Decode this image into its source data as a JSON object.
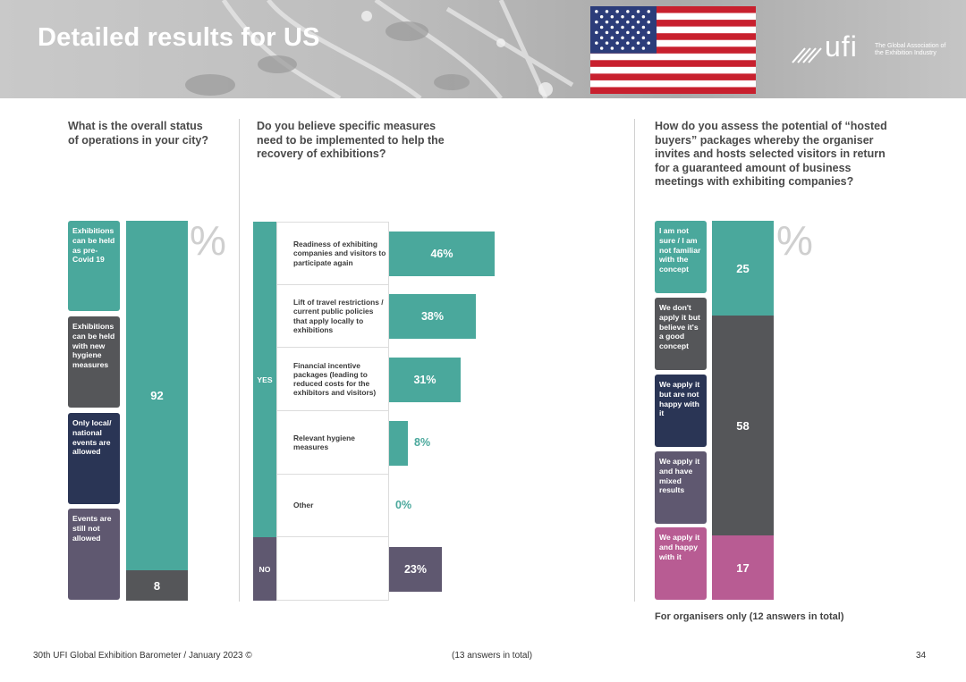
{
  "header": {
    "title": "Detailed results for US",
    "logo_text": "ufi",
    "logo_tagline": "The Global Association of the Exhibition Industry",
    "colors": {
      "teal": "#4aa89c",
      "dark_gray": "#555659",
      "navy": "#2a3555",
      "purple_gray": "#5f5870",
      "pink": "#b85c93"
    }
  },
  "chart_data": [
    {
      "type": "bar",
      "subtype": "stacked-100",
      "title": "What is the overall status of operations in your city?",
      "unit": "%",
      "legend": [
        "Exhibitions can be held as pre-Covid 19",
        "Exhibitions can be held with new hygiene measures",
        "Only local/ national events are allowed",
        "Events are still not allowed"
      ],
      "segments": [
        {
          "name": "Exhibitions can be held as pre-Covid 19",
          "value": 92,
          "label": "92"
        },
        {
          "name": "Exhibitions can be held with new hygiene measures",
          "value": 8,
          "label": "8"
        }
      ]
    },
    {
      "type": "bar",
      "subtype": "horizontal",
      "title": "Do you believe specific measures need to be implemented to help the recovery of exhibitions?",
      "groups": {
        "yes_label": "YES",
        "no_label": "NO"
      },
      "categories": [
        "Readiness of exhibiting companies and visitors to participate again",
        "Lift of travel restrictions / current public policies that apply locally to exhibitions",
        "Financial incentive packages (leading to reduced costs for the exhibitors and visitors)",
        "Relevant hygiene measures",
        "Other",
        ""
      ],
      "values": [
        46,
        38,
        31,
        8,
        0,
        23
      ],
      "labels": [
        "46%",
        "38%",
        "31%",
        "8%",
        "0%",
        "23%"
      ],
      "xlim": [
        0,
        100
      ]
    },
    {
      "type": "bar",
      "subtype": "stacked-100",
      "title": "How do you assess the potential of “hosted buyers” packages whereby the organiser invites and hosts selected visitors in return for a guaranteed amount of business meetings with exhibiting companies?",
      "unit": "%",
      "legend": [
        "I am not sure / I am not familiar with the concept",
        "We don't apply it but believe it's a good concept",
        "We apply it but are not happy with it",
        "We apply it and have mixed results",
        "We apply it and happy with it"
      ],
      "segments": [
        {
          "name": "I am not sure / I am not familiar with the concept",
          "value": 25,
          "label": "25"
        },
        {
          "name": "We don't apply it but believe it's a good concept",
          "value": 58,
          "label": "58"
        },
        {
          "name": "We apply it and happy with it",
          "value": 17,
          "label": "17"
        }
      ],
      "note": "For organisers only (12 answers in total)"
    }
  ],
  "footer": {
    "source": "30th UFI Global Exhibition Barometer / January 2023 ©",
    "answers": "(13 answers in total)",
    "page_number": "34"
  },
  "percent_symbol": "%"
}
